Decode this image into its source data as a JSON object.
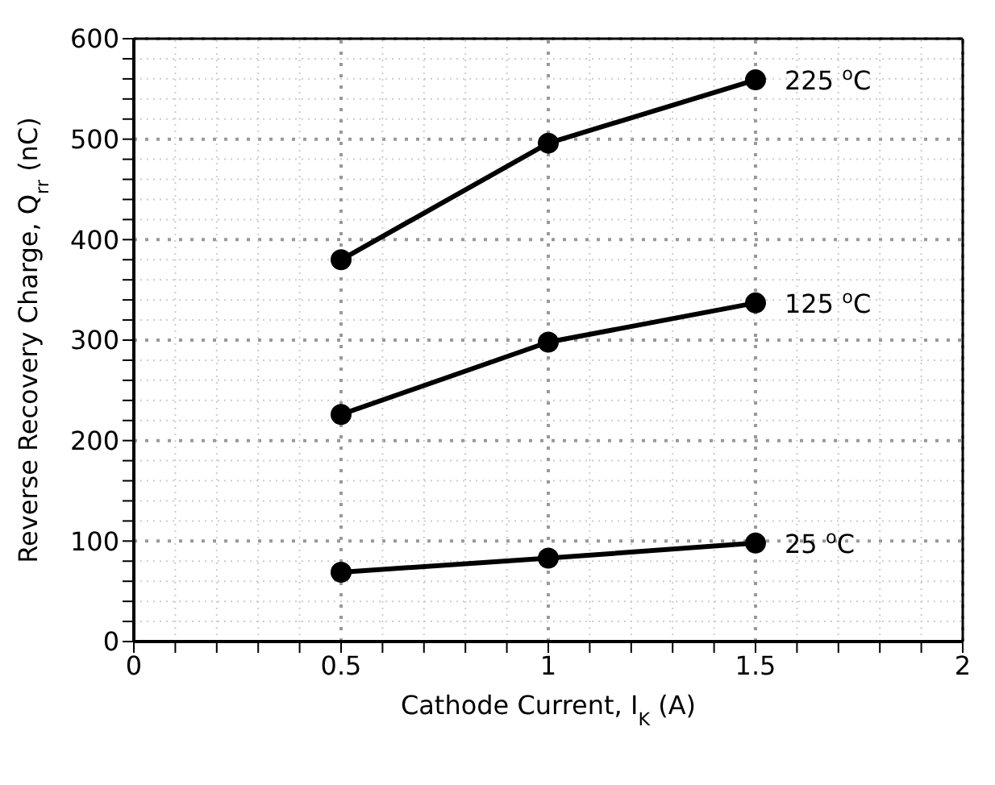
{
  "chart_data": {
    "type": "line",
    "xlabel": "Cathode Current, I$_{K}$ (A)",
    "ylabel": "Reverse Recovery Charge, Q$_{rr}$ (nC)",
    "x": [
      0.5,
      1,
      1.5
    ],
    "series": [
      {
        "name": "225 $^{o}$C",
        "color": "#000000",
        "values": [
          380,
          496,
          559
        ]
      },
      {
        "name": "125 $^{o}$C",
        "color": "#000000",
        "values": [
          226,
          298,
          337
        ]
      },
      {
        "name": "25 $^{o}$C",
        "color": "#000000",
        "values": [
          69,
          83,
          98
        ]
      }
    ],
    "xlim": [
      0,
      2
    ],
    "xticks": [
      0,
      {
        "value": 0.1,
        "label": null
      },
      {
        "value": 0.2,
        "label": null
      },
      {
        "value": 0.3,
        "label": null
      },
      {
        "value": 0.4,
        "label": null
      },
      0.5,
      {
        "value": 0.6,
        "label": null
      },
      {
        "value": 0.7,
        "label": null
      },
      {
        "value": 0.8,
        "label": null
      },
      {
        "value": 0.9,
        "label": null
      },
      1,
      {
        "value": 1.1,
        "label": null
      },
      {
        "value": 1.2,
        "label": null
      },
      {
        "value": 1.3,
        "label": null
      },
      {
        "value": 1.4,
        "label": null
      },
      1.5,
      {
        "value": 1.6,
        "label": null
      },
      {
        "value": 1.7,
        "label": null
      },
      {
        "value": 1.8,
        "label": null
      },
      {
        "value": 1.9,
        "label": null
      },
      2
    ],
    "ylim": [
      0,
      600
    ],
    "yticks": [
      0,
      {
        "value": 20,
        "label": null
      },
      {
        "value": 40,
        "label": null
      },
      {
        "value": 60,
        "label": null
      },
      {
        "value": 80,
        "label": null
      },
      100,
      {
        "value": 120,
        "label": null
      },
      {
        "value": 140,
        "label": null
      },
      {
        "value": 160,
        "label": null
      },
      {
        "value": 180,
        "label": null
      },
      200,
      {
        "value": 220,
        "label": null
      },
      {
        "value": 240,
        "label": null
      },
      {
        "value": 260,
        "label": null
      },
      {
        "value": 280,
        "label": null
      },
      300,
      {
        "value": 320,
        "label": null
      },
      {
        "value": 340,
        "label": null
      },
      {
        "value": 360,
        "label": null
      },
      {
        "value": 380,
        "label": null
      },
      400,
      {
        "value": 420,
        "label": null
      },
      {
        "value": 440,
        "label": null
      },
      {
        "value": 460,
        "label": null
      },
      {
        "value": 480,
        "label": null
      },
      500,
      {
        "value": 520,
        "label": null
      },
      {
        "value": 540,
        "label": null
      },
      {
        "value": 560,
        "label": null
      },
      {
        "value": 580,
        "label": null
      },
      600
    ],
    "grid": true,
    "marker": "circle",
    "line_style": "solid"
  }
}
